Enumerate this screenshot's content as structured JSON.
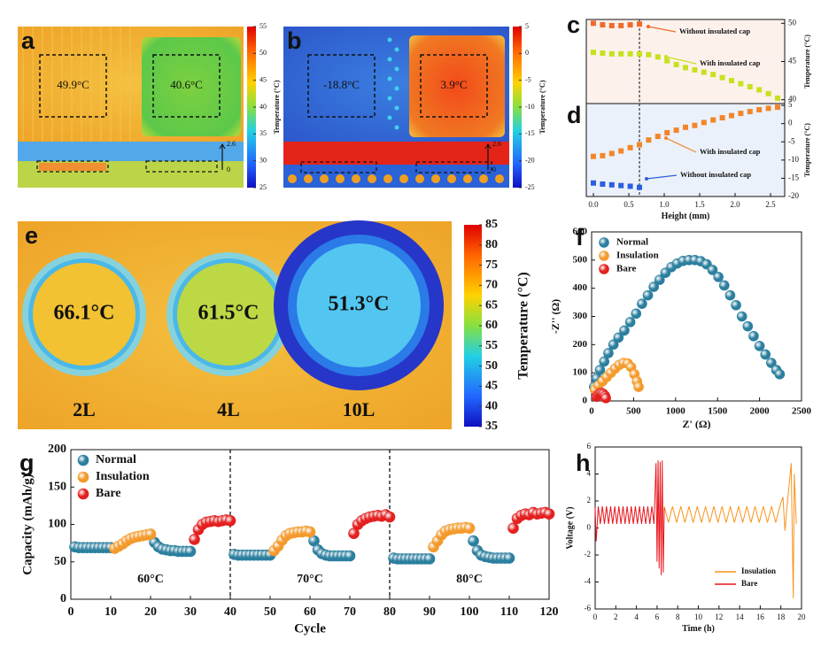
{
  "chart_data": [
    {
      "type": "thermal",
      "panel": "a",
      "annotations": [
        "49.9°C",
        "40.6°C"
      ],
      "scale_ticks": [
        0,
        2.6
      ],
      "colorbar_label": "Temperature (°C)",
      "clim": [
        25,
        55
      ],
      "cticks": [
        25,
        30,
        35,
        40,
        45,
        50,
        55
      ]
    },
    {
      "type": "thermal",
      "panel": "b",
      "annotations": [
        "-18.8°C",
        "3.9°C"
      ],
      "scale_ticks": [
        0,
        2.6
      ],
      "colorbar_label": "Temperature (°C)",
      "clim": [
        -25,
        5
      ],
      "cticks": [
        -25,
        -20,
        -15,
        -10,
        -5,
        0,
        5
      ]
    },
    {
      "type": "scatter",
      "panel": "c",
      "ylabel": "Temperature (°C)",
      "yaxis": "right",
      "x": [
        0,
        0.13,
        0.26,
        0.39,
        0.52,
        0.65,
        0.78,
        0.91,
        1.04,
        1.17,
        1.3,
        1.43,
        1.56,
        1.69,
        1.82,
        1.95,
        2.08,
        2.21,
        2.34,
        2.47,
        2.6
      ],
      "series": [
        {
          "name": "Without insulated cap",
          "color": "#f06a2a",
          "values": [
            50,
            49.8,
            49.7,
            49.7,
            49.8,
            49.9,
            null,
            null,
            null,
            null,
            null,
            null,
            null,
            null,
            null,
            null,
            null,
            null,
            null,
            null,
            null
          ]
        },
        {
          "name": "With insulated cap",
          "color": "#c6e21e",
          "values": [
            46.2,
            46.1,
            46.0,
            46.0,
            46.0,
            46.0,
            45.9,
            45.6,
            45.1,
            44.6,
            44.2,
            43.9,
            43.6,
            43.3,
            42.9,
            42.5,
            42.1,
            41.7,
            41.3,
            40.8,
            40.2
          ]
        }
      ],
      "xlim": [
        -0.1,
        2.7
      ],
      "ylim": [
        39.5,
        50.5
      ],
      "yticks": [
        40,
        45,
        50
      ],
      "vline": 0.65
    },
    {
      "type": "scatter",
      "panel": "d",
      "xlabel": "Height (mm)",
      "ylabel": "Temperature (°C)",
      "yaxis": "right",
      "x": [
        0,
        0.13,
        0.26,
        0.39,
        0.52,
        0.65,
        0.78,
        0.91,
        1.04,
        1.17,
        1.3,
        1.43,
        1.56,
        1.69,
        1.82,
        1.95,
        2.08,
        2.21,
        2.34,
        2.47,
        2.6
      ],
      "series": [
        {
          "name": "With insulated cap",
          "color": "#f2852a",
          "values": [
            -9,
            -8.8,
            -8.2,
            -7.5,
            -6.6,
            -5.8,
            -4.5,
            -3.5,
            -2.5,
            -1.8,
            -1,
            -0.5,
            0.3,
            1,
            1.6,
            2.2,
            2.8,
            3.3,
            3.8,
            4.2,
            4.5
          ]
        },
        {
          "name": "Without insulated cap",
          "color": "#2a5fe0",
          "values": [
            -16.3,
            -16.6,
            -16.8,
            -17,
            -17.2,
            -17.5,
            null,
            null,
            null,
            null,
            null,
            null,
            null,
            null,
            null,
            null,
            null,
            null,
            null,
            null,
            null
          ]
        }
      ],
      "xlim": [
        -0.1,
        2.7
      ],
      "ylim": [
        -20,
        5.5
      ],
      "yticks": [
        -20,
        -15,
        -10,
        -5,
        0,
        5
      ],
      "xticks": [
        {
          "value": 0,
          "label": "0.0"
        },
        0.5,
        {
          "value": 1,
          "label": "1.0"
        },
        1.5,
        {
          "value": 2,
          "label": "2.0"
        },
        2.5
      ],
      "vline": 0.65
    },
    {
      "type": "thermal",
      "panel": "e",
      "annotations": [
        "66.1°C",
        "61.5°C",
        "51.3°C"
      ],
      "labels": [
        "2L",
        "4L",
        "10L"
      ],
      "colorbar_label": "Temperature (°C)",
      "clim": [
        35,
        85
      ],
      "cticks": [
        35,
        40,
        45,
        50,
        55,
        60,
        65,
        70,
        75,
        80,
        85
      ]
    },
    {
      "type": "scatter",
      "panel": "f",
      "xlabel": "Z' (Ω)",
      "ylabel": "-Z'' (Ω)",
      "legend": "upper left",
      "series": [
        {
          "name": "Normal",
          "color": "#2b7f9e",
          "x": [
            30,
            60,
            100,
            150,
            200,
            260,
            320,
            390,
            460,
            530,
            600,
            670,
            740,
            810,
            880,
            950,
            1020,
            1090,
            1160,
            1230,
            1300,
            1370,
            1440,
            1510,
            1580,
            1650,
            1720,
            1790,
            1860,
            1930,
            2000,
            2070,
            2140,
            2200,
            2240
          ],
          "values": [
            50,
            80,
            110,
            140,
            170,
            200,
            225,
            250,
            280,
            310,
            345,
            375,
            405,
            430,
            455,
            475,
            488,
            497,
            500,
            500,
            496,
            485,
            465,
            440,
            410,
            375,
            340,
            300,
            265,
            230,
            195,
            165,
            135,
            110,
            95
          ]
        },
        {
          "name": "Insulation",
          "color": "#f39a2c",
          "x": [
            40,
            80,
            130,
            180,
            230,
            280,
            330,
            380,
            430,
            470,
            510,
            540,
            560
          ],
          "values": [
            40,
            55,
            70,
            85,
            100,
            115,
            128,
            135,
            133,
            120,
            95,
            70,
            50
          ]
        },
        {
          "name": "Bare",
          "color": "#e3201f",
          "x": [
            60,
            80,
            100,
            120,
            140,
            160,
            170
          ],
          "values": [
            15,
            22,
            27,
            28,
            25,
            18,
            10
          ]
        }
      ],
      "xlim": [
        0,
        2500
      ],
      "ylim": [
        0,
        600
      ],
      "xticks": [
        0,
        500,
        1000,
        1500,
        2000,
        2500
      ],
      "yticks": [
        0,
        100,
        200,
        300,
        400,
        500,
        600
      ]
    },
    {
      "type": "scatter",
      "panel": "g",
      "xlabel": "Cycle",
      "ylabel": "Capacity (mAh/g)",
      "legend": "upper left",
      "annotations": [
        "60°C",
        "70°C",
        "80°C"
      ],
      "vlines": [
        40,
        80
      ],
      "series": [
        {
          "name": "Normal",
          "color": "#2b7f9e",
          "x": [
            1,
            2,
            3,
            4,
            5,
            6,
            7,
            8,
            9,
            10,
            21,
            22,
            23,
            24,
            25,
            26,
            27,
            28,
            29,
            30,
            41,
            42,
            43,
            44,
            45,
            46,
            47,
            48,
            49,
            50,
            61,
            62,
            63,
            64,
            65,
            66,
            67,
            68,
            69,
            70,
            81,
            82,
            83,
            84,
            85,
            86,
            87,
            88,
            89,
            90,
            101,
            102,
            103,
            104,
            105,
            106,
            107,
            108,
            109,
            110
          ],
          "values": [
            70,
            69,
            69,
            69,
            69,
            69,
            69,
            69,
            69,
            69,
            76,
            70,
            67,
            66,
            65,
            65,
            64,
            64,
            64,
            64,
            60,
            59,
            59,
            59,
            59,
            59,
            59,
            59,
            59,
            59,
            78,
            66,
            61,
            59,
            58,
            58,
            58,
            58,
            58,
            58,
            55,
            54,
            54,
            54,
            54,
            54,
            54,
            54,
            54,
            54,
            78,
            65,
            59,
            57,
            56,
            55,
            55,
            55,
            55,
            55
          ]
        },
        {
          "name": "Insulation",
          "color": "#f39a2c",
          "x": [
            11,
            12,
            13,
            14,
            15,
            16,
            17,
            18,
            19,
            20,
            51,
            52,
            53,
            54,
            55,
            56,
            57,
            58,
            59,
            60,
            91,
            92,
            93,
            94,
            95,
            96,
            97,
            98,
            99,
            100
          ],
          "values": [
            68,
            71,
            74,
            78,
            81,
            83,
            84,
            85,
            86,
            87,
            65,
            71,
            79,
            85,
            88,
            89,
            90,
            90,
            91,
            90,
            70,
            78,
            86,
            91,
            93,
            94,
            95,
            95,
            96,
            95
          ]
        },
        {
          "name": "Bare",
          "color": "#e3201f",
          "x": [
            31,
            32,
            33,
            34,
            35,
            36,
            37,
            38,
            39,
            40,
            71,
            72,
            73,
            74,
            75,
            76,
            77,
            78,
            79,
            80,
            111,
            112,
            113,
            114,
            115,
            116,
            117,
            118,
            119,
            120
          ],
          "values": [
            80,
            93,
            100,
            103,
            104,
            105,
            104,
            105,
            106,
            105,
            88,
            100,
            105,
            108,
            110,
            111,
            112,
            111,
            113,
            110,
            95,
            108,
            112,
            114,
            113,
            116,
            114,
            115,
            116,
            114
          ]
        }
      ],
      "xlim": [
        0,
        120
      ],
      "ylim": [
        0,
        200
      ],
      "xticks": [
        0,
        10,
        20,
        30,
        40,
        50,
        60,
        70,
        80,
        90,
        100,
        110,
        120
      ],
      "yticks": [
        0,
        50,
        100,
        150,
        200
      ]
    },
    {
      "type": "line",
      "panel": "h",
      "xlabel": "Time (h)",
      "ylabel": "Voltage (V)",
      "legend": "lower right",
      "series": [
        {
          "name": "Insulation",
          "color": "#f7941d",
          "x": [
            6.7,
            7.1,
            7.5,
            7.9,
            8.3,
            8.7,
            9.1,
            9.5,
            9.9,
            10.3,
            10.7,
            11.1,
            11.5,
            11.9,
            12.3,
            12.7,
            13.1,
            13.5,
            13.9,
            14.3,
            14.7,
            15.1,
            15.5,
            15.9,
            16.3,
            16.7,
            17.1,
            17.5,
            17.9,
            18.2,
            18.4,
            18.6,
            19.0,
            19.2,
            19.3,
            19.5
          ],
          "values": [
            1.6,
            0.4,
            1.6,
            0.4,
            1.6,
            0.4,
            1.6,
            0.4,
            1.6,
            0.4,
            1.6,
            0.4,
            1.6,
            0.4,
            1.6,
            0.4,
            1.6,
            0.4,
            1.6,
            0.4,
            1.6,
            0.4,
            1.6,
            0.4,
            1.6,
            0.4,
            1.6,
            0.4,
            1.6,
            2.3,
            -0.2,
            1.6,
            4.8,
            -5.2,
            4.0,
            0.3
          ]
        },
        {
          "name": "Bare",
          "color": "#e8141c",
          "x": [
            0,
            0.1,
            0.3,
            0.5,
            0.7,
            0.9,
            1.1,
            1.3,
            1.5,
            1.7,
            1.9,
            2.1,
            2.3,
            2.5,
            2.7,
            2.9,
            3.1,
            3.3,
            3.5,
            3.7,
            3.9,
            4.1,
            4.3,
            4.5,
            4.7,
            4.9,
            5.1,
            5.3,
            5.5,
            5.7,
            5.9,
            6.0,
            6.1,
            6.2,
            6.3,
            6.4,
            6.5,
            6.6,
            6.7
          ],
          "values": [
            1.5,
            -1.0,
            1.6,
            0.3,
            1.6,
            0.3,
            1.6,
            0.3,
            1.6,
            0.3,
            1.6,
            0.3,
            1.6,
            0.3,
            1.6,
            0.3,
            1.6,
            0.3,
            1.6,
            0.3,
            1.6,
            0.3,
            1.6,
            0.3,
            1.6,
            0.3,
            1.6,
            0.3,
            1.6,
            0.3,
            4.8,
            -2.5,
            5.0,
            -3.0,
            4.9,
            -3.5,
            5.0,
            -3.3,
            1.5
          ]
        }
      ],
      "xlim": [
        0,
        20
      ],
      "ylim": [
        -6,
        6
      ],
      "xticks": [
        0,
        2,
        4,
        6,
        8,
        10,
        12,
        14,
        16,
        18,
        20
      ],
      "yticks": [
        -6,
        -4,
        -2,
        0,
        2,
        4,
        6
      ]
    }
  ]
}
